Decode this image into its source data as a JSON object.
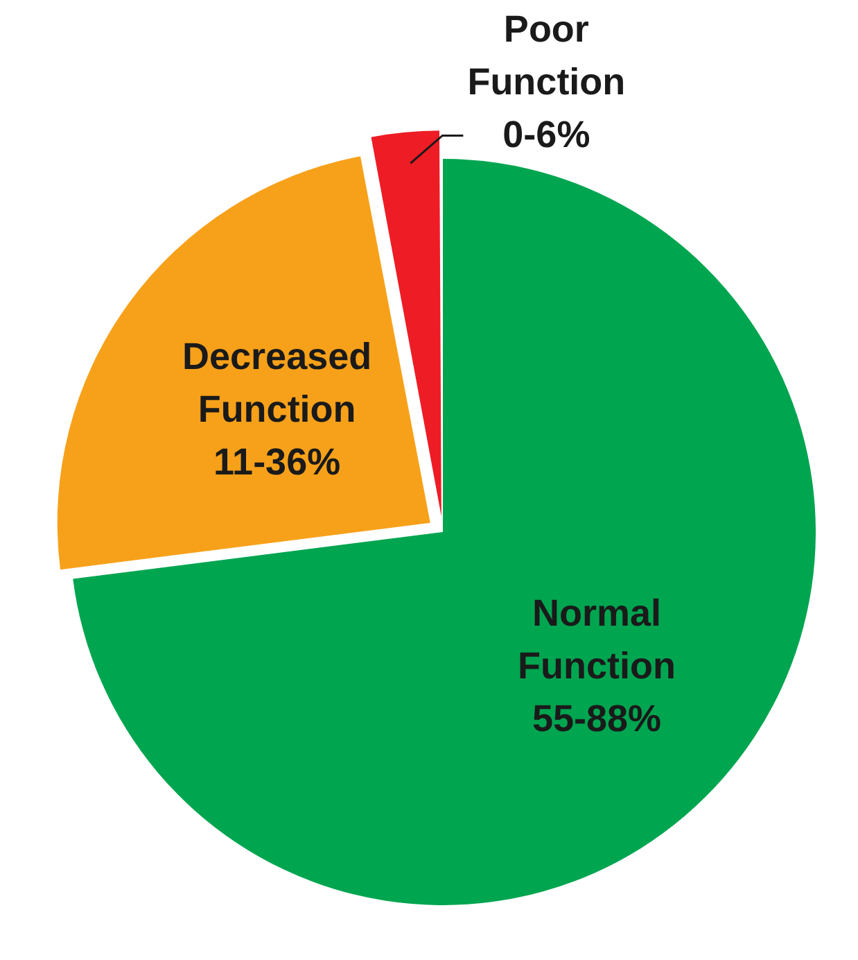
{
  "chart_data": {
    "type": "pie",
    "categories": [
      "Normal Function 55-88%",
      "Decreased Function 11-36%",
      "Poor Function 0-6%"
    ],
    "values": [
      73,
      24,
      3
    ],
    "colors": [
      "#00a550",
      "#f7a11a",
      "#ee1c25"
    ],
    "legend": false
  }
}
